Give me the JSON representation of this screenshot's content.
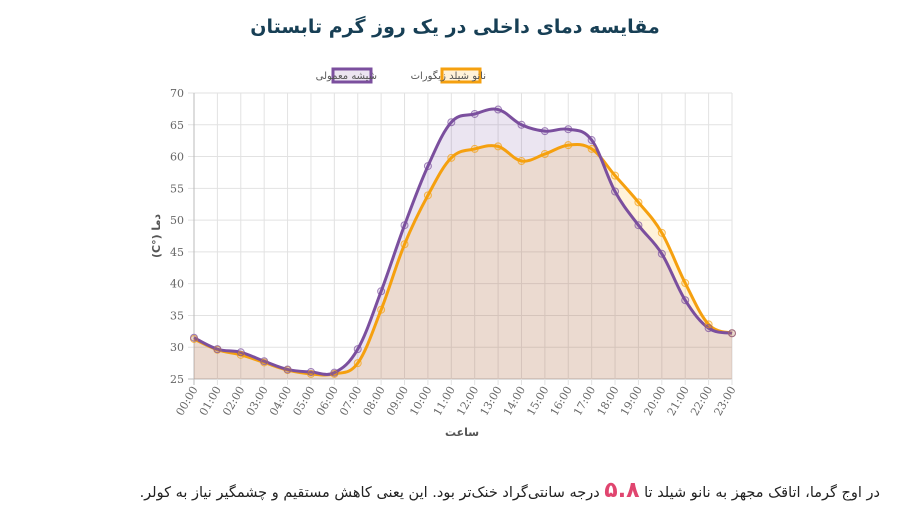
{
  "title": "مقایسه دمای داخلی در یک روز گرم تابستان",
  "note": {
    "before": "در اوج گرما، اتاقک مجهز به نانو شیلد تا ",
    "highlight": "۵.۸",
    "after": " درجه سانتی‌گراد خنک‌تر بود. این یعنی کاهش مستقیم و چشمگیر نیاز به کولر."
  },
  "colors": {
    "regular": "#7b4f9e",
    "nano": "#f5a00f",
    "title": "#173f55",
    "highlight": "#e0456f"
  },
  "chart_data": {
    "type": "line",
    "title": "مقایسه دمای داخلی در یک روز گرم تابستان",
    "xlabel": "ساعت",
    "ylabel": "دما (°C)",
    "ylim": [
      25,
      70
    ],
    "yticks": [
      25,
      30,
      35,
      40,
      45,
      50,
      55,
      60,
      65,
      70
    ],
    "grid": true,
    "legend": "top-center",
    "categories": [
      "00:00",
      "01:00",
      "02:00",
      "03:00",
      "04:00",
      "05:00",
      "06:00",
      "07:00",
      "08:00",
      "09:00",
      "10:00",
      "11:00",
      "12:00",
      "13:00",
      "14:00",
      "15:00",
      "16:00",
      "17:00",
      "18:00",
      "19:00",
      "20:00",
      "21:00",
      "22:00",
      "23:00"
    ],
    "series": [
      {
        "name": "شیشه معمولی",
        "color": "#7b4f9e",
        "values": [
          31.5,
          29.7,
          29.2,
          27.8,
          26.5,
          26.1,
          26.0,
          29.7,
          38.8,
          49.2,
          58.5,
          65.4,
          66.7,
          67.4,
          65.0,
          64.0,
          64.3,
          62.6,
          54.5,
          49.2,
          44.7,
          37.4,
          33.0,
          32.2
        ]
      },
      {
        "name": "نانو شیلد زیگورات",
        "color": "#f5a00f",
        "values": [
          31.3,
          29.6,
          28.8,
          27.6,
          26.4,
          25.8,
          25.8,
          27.5,
          35.9,
          46.2,
          53.9,
          59.8,
          61.2,
          61.6,
          59.3,
          60.4,
          61.8,
          61.2,
          57.0,
          52.8,
          48.0,
          40.1,
          33.6,
          32.2
        ]
      }
    ]
  }
}
